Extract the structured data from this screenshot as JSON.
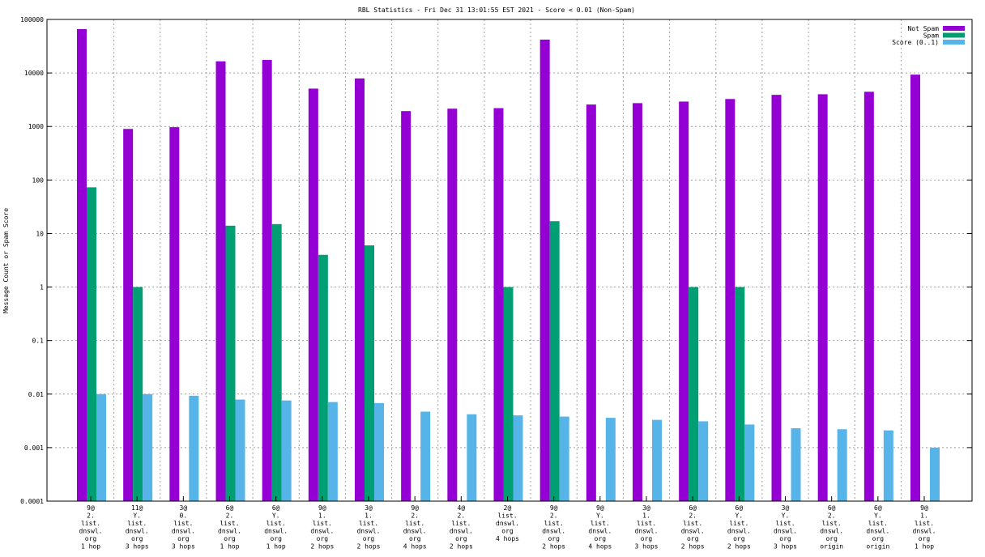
{
  "chart_data": {
    "type": "bar",
    "title": "RBL Statistics - Fri Dec 31 13:01:55 EST 2021 - Score < 0.01 (Non-Spam)",
    "xlabel": "",
    "ylabel": "Message Count or Spam Score",
    "yscale": "log",
    "ylim": [
      0.0001,
      100000
    ],
    "yticks": [
      "100000",
      "10000",
      "1000",
      "100",
      "10",
      "1",
      "0.1",
      "0.01",
      "0.001",
      "0.0001"
    ],
    "grid": true,
    "legend_position": "top-right",
    "categories": [
      [
        "9@",
        "2.",
        "list.",
        "dnswl.",
        "org",
        "1 hop"
      ],
      [
        "11@",
        "Y.",
        "list.",
        "dnswl.",
        "org",
        "3 hops"
      ],
      [
        "3@",
        "0.",
        "list.",
        "dnswl.",
        "org",
        "3 hops"
      ],
      [
        "6@",
        "2.",
        "list.",
        "dnswl.",
        "org",
        "1 hop"
      ],
      [
        "6@",
        "Y.",
        "list.",
        "dnswl.",
        "org",
        "1 hop"
      ],
      [
        "9@",
        "1.",
        "list.",
        "dnswl.",
        "org",
        "2 hops"
      ],
      [
        "3@",
        "1.",
        "list.",
        "dnswl.",
        "org",
        "2 hops"
      ],
      [
        "9@",
        "2.",
        "list.",
        "dnswl.",
        "org",
        "4 hops"
      ],
      [
        "4@",
        "2.",
        "list.",
        "dnswl.",
        "org",
        "2 hops"
      ],
      [
        "2@",
        "list.",
        "dnswl.",
        "org",
        "4 hops"
      ],
      [
        "9@",
        "2.",
        "list.",
        "dnswl.",
        "org",
        "2 hops"
      ],
      [
        "9@",
        "Y.",
        "list.",
        "dnswl.",
        "org",
        "4 hops"
      ],
      [
        "3@",
        "1.",
        "list.",
        "dnswl.",
        "org",
        "3 hops"
      ],
      [
        "6@",
        "2.",
        "list.",
        "dnswl.",
        "org",
        "2 hops"
      ],
      [
        "6@",
        "Y.",
        "list.",
        "dnswl.",
        "org",
        "2 hops"
      ],
      [
        "3@",
        "Y.",
        "list.",
        "dnswl.",
        "org",
        "3 hops"
      ],
      [
        "6@",
        "2.",
        "list.",
        "dnswl.",
        "org",
        "origin"
      ],
      [
        "6@",
        "Y.",
        "list.",
        "dnswl.",
        "org",
        "origin"
      ],
      [
        "9@",
        "1.",
        "list.",
        "dnswl.",
        "org",
        "1 hop"
      ]
    ],
    "series": [
      {
        "name": "Not Spam",
        "color": "#9400d3",
        "values": [
          66000,
          900,
          970,
          16500,
          17500,
          5100,
          7900,
          1940,
          2150,
          2200,
          42000,
          2570,
          2730,
          2920,
          3260,
          3900,
          4000,
          4450,
          9300
        ]
      },
      {
        "name": "Spam",
        "color": "#009e73",
        "values": [
          73,
          1,
          null,
          14,
          15,
          4,
          6,
          null,
          null,
          1,
          17,
          null,
          null,
          1,
          1,
          null,
          null,
          null,
          null
        ]
      },
      {
        "name": "Score (0..1)",
        "color": "#56b4e9",
        "values": [
          0.01,
          0.01,
          0.0093,
          0.0079,
          0.0076,
          0.0071,
          0.0068,
          0.0047,
          0.0042,
          0.004,
          0.0038,
          0.0036,
          0.0033,
          0.0031,
          0.0027,
          0.0023,
          0.0022,
          0.0021,
          0.001
        ]
      }
    ]
  }
}
